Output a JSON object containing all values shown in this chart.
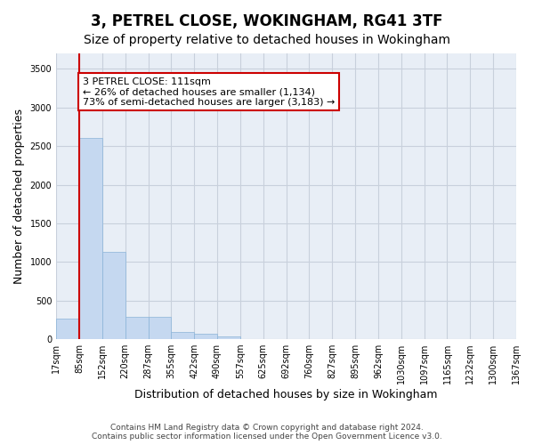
{
  "title": "3, PETREL CLOSE, WOKINGHAM, RG41 3TF",
  "subtitle": "Size of property relative to detached houses in Wokingham",
  "xlabel": "Distribution of detached houses by size in Wokingham",
  "ylabel": "Number of detached properties",
  "bar_color": "#c5d8f0",
  "bar_edgecolor": "#8ab4d8",
  "grid_color": "#c8d0dc",
  "background_color": "#e8eef6",
  "bin_labels": [
    "17sqm",
    "85sqm",
    "152sqm",
    "220sqm",
    "287sqm",
    "355sqm",
    "422sqm",
    "490sqm",
    "557sqm",
    "625sqm",
    "692sqm",
    "760sqm",
    "827sqm",
    "895sqm",
    "962sqm",
    "1030sqm",
    "1097sqm",
    "1165sqm",
    "1232sqm",
    "1300sqm",
    "1367sqm"
  ],
  "values": [
    270,
    2600,
    1130,
    290,
    290,
    95,
    65,
    40,
    0,
    0,
    0,
    0,
    0,
    0,
    0,
    0,
    0,
    0,
    0,
    0
  ],
  "annotation_text": "3 PETREL CLOSE: 111sqm\n← 26% of detached houses are smaller (1,134)\n73% of semi-detached houses are larger (3,183) →",
  "vline_color": "#cc0000",
  "vline_pos": 0.5,
  "ylim": [
    0,
    3700
  ],
  "yticks": [
    0,
    500,
    1000,
    1500,
    2000,
    2500,
    3000,
    3500
  ],
  "footnote": "Contains HM Land Registry data © Crown copyright and database right 2024.\nContains public sector information licensed under the Open Government Licence v3.0.",
  "title_fontsize": 12,
  "subtitle_fontsize": 10,
  "xlabel_fontsize": 9,
  "ylabel_fontsize": 9,
  "tick_fontsize": 7,
  "annotation_fontsize": 8,
  "footnote_fontsize": 6.5
}
